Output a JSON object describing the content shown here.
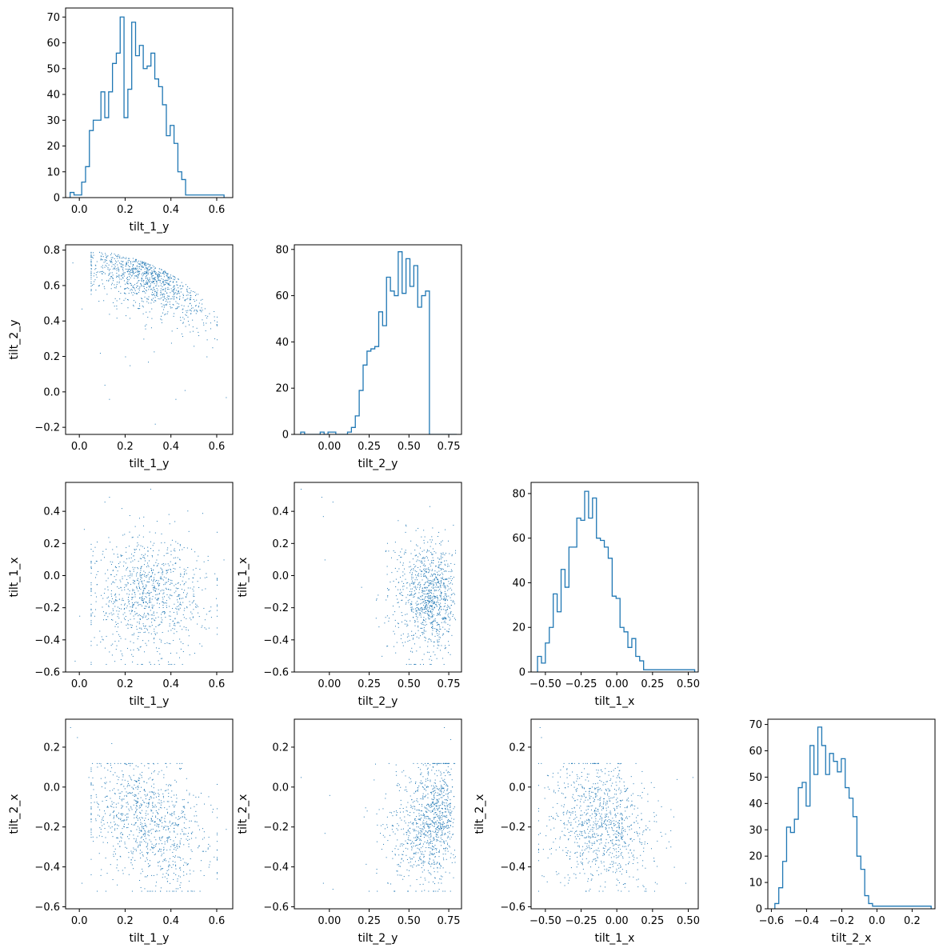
{
  "colors": {
    "series": "#1f77b4",
    "axis": "#000000",
    "background": "#ffffff"
  },
  "chart_data": {
    "type": "corner",
    "variables": [
      "tilt_1_y",
      "tilt_2_y",
      "tilt_1_x",
      "tilt_2_x"
    ],
    "grid": false,
    "panels": [
      {
        "id": "hist-tilt_1_y",
        "type": "histogram",
        "row": 0,
        "col": 0,
        "xlabel": "tilt_1_y",
        "ylabel": "",
        "xlim": [
          -0.06,
          0.67
        ],
        "ylim": [
          0,
          73.5
        ],
        "xticks": [
          0.0,
          0.2,
          0.4,
          0.6
        ],
        "xticklabels": [
          "0.0",
          "0.2",
          "0.4",
          "0.6"
        ],
        "yticks": [
          0,
          10,
          20,
          30,
          40,
          50,
          60,
          70
        ],
        "yticklabels": [
          "0",
          "10",
          "20",
          "30",
          "40",
          "50",
          "60",
          "70"
        ],
        "bin_start": -0.04,
        "bin_width": 0.0168,
        "counts": [
          2,
          1,
          1,
          6,
          12,
          26,
          30,
          30,
          41,
          31,
          41,
          52,
          56,
          70,
          31,
          42,
          68,
          55,
          59,
          50,
          51,
          56,
          46,
          43,
          36,
          24,
          28,
          21,
          10,
          7,
          1,
          1,
          1,
          1,
          1,
          1,
          1,
          1,
          1,
          1
        ]
      },
      {
        "id": "hist-tilt_2_y",
        "type": "histogram",
        "row": 1,
        "col": 1,
        "xlabel": "tilt_2_y",
        "ylabel": "",
        "xlim": [
          -0.22,
          0.83
        ],
        "ylim": [
          0,
          82
        ],
        "xticks": [
          0.0,
          0.25,
          0.5,
          0.75
        ],
        "xticklabels": [
          "0.00",
          "0.25",
          "0.50",
          "0.75"
        ],
        "yticks": [
          0,
          20,
          40,
          60,
          80
        ],
        "yticklabels": [
          "0",
          "20",
          "40",
          "60",
          "80"
        ],
        "bin_start": -0.18,
        "bin_width": 0.0245,
        "counts": [
          1,
          0,
          0,
          0,
          0,
          1,
          0,
          1,
          1,
          0,
          0,
          0,
          1,
          3,
          8,
          19,
          30,
          36,
          37,
          38,
          53,
          47,
          68,
          62,
          60,
          79,
          61,
          76,
          64,
          73,
          55,
          60,
          62,
          0,
          0,
          0,
          0,
          0,
          0,
          0
        ]
      },
      {
        "id": "hist-tilt_1_x",
        "type": "histogram",
        "row": 2,
        "col": 2,
        "xlabel": "tilt_1_x",
        "ylabel": "",
        "xlim": [
          -0.6,
          0.57
        ],
        "ylim": [
          0,
          85
        ],
        "xticks": [
          -0.5,
          -0.25,
          0.0,
          0.25,
          0.5
        ],
        "xticklabels": [
          "−0.50",
          "−0.25",
          "0.00",
          "0.25",
          "0.50"
        ],
        "yticks": [
          0,
          20,
          40,
          60,
          80
        ],
        "yticklabels": [
          "0",
          "20",
          "40",
          "60",
          "80"
        ],
        "bin_start": -0.555,
        "bin_width": 0.0275,
        "counts": [
          7,
          4,
          13,
          20,
          35,
          27,
          46,
          38,
          56,
          56,
          69,
          68,
          81,
          69,
          78,
          60,
          59,
          56,
          51,
          34,
          33,
          20,
          18,
          11,
          15,
          7,
          5,
          1,
          1,
          1,
          1,
          1,
          1,
          1,
          1,
          1,
          1,
          1,
          1,
          1
        ]
      },
      {
        "id": "hist-tilt_2_x",
        "type": "histogram",
        "row": 3,
        "col": 3,
        "xlabel": "tilt_2_x",
        "ylabel": "",
        "xlim": [
          -0.62,
          0.33
        ],
        "ylim": [
          0,
          72
        ],
        "xticks": [
          -0.6,
          -0.4,
          -0.2,
          0.0,
          0.2
        ],
        "xticklabels": [
          "−0.6",
          "−0.4",
          "−0.2",
          "0.0",
          "0.2"
        ],
        "yticks": [
          0,
          10,
          20,
          30,
          40,
          50,
          60,
          70
        ],
        "yticklabels": [
          "0",
          "10",
          "20",
          "30",
          "40",
          "50",
          "60",
          "70"
        ],
        "bin_start": -0.58,
        "bin_width": 0.0222,
        "counts": [
          2,
          8,
          18,
          31,
          29,
          34,
          46,
          48,
          39,
          62,
          51,
          69,
          62,
          51,
          59,
          56,
          52,
          57,
          46,
          42,
          35,
          20,
          15,
          5,
          2,
          1,
          1,
          1,
          1,
          1,
          1,
          1,
          1,
          1,
          1,
          1,
          1,
          1,
          1,
          1
        ]
      },
      {
        "id": "scatter-tilt_1_y-tilt_2_y",
        "type": "scatter",
        "row": 1,
        "col": 0,
        "xlabel": "tilt_1_y",
        "ylabel": "tilt_2_y",
        "xvar": "tilt_1_y",
        "yvar": "tilt_2_y",
        "xlim": [
          -0.06,
          0.67
        ],
        "ylim": [
          -0.24,
          0.83
        ],
        "xticks": [
          0.0,
          0.2,
          0.4,
          0.6
        ],
        "xticklabels": [
          "0.0",
          "0.2",
          "0.4",
          "0.6"
        ],
        "yticks": [
          -0.2,
          0.0,
          0.2,
          0.4,
          0.6,
          0.8
        ],
        "yticklabels": [
          "−0.2",
          "0.0",
          "0.2",
          "0.4",
          "0.6",
          "0.8"
        ],
        "n_points": 1000,
        "points": [
          [
            0.05,
            0.74
          ],
          [
            -0.03,
            0.73
          ],
          [
            0.01,
            0.47
          ],
          [
            0.11,
            0.04
          ],
          [
            0.13,
            -0.04
          ],
          [
            0.33,
            -0.18
          ],
          [
            0.64,
            -0.03
          ],
          [
            0.46,
            0.01
          ],
          [
            0.42,
            -0.04
          ],
          [
            0.09,
            0.22
          ],
          [
            0.13,
            0.44
          ],
          [
            0.2,
            0.2
          ],
          [
            0.22,
            0.15
          ],
          [
            0.28,
            0.3
          ],
          [
            0.3,
            0.17
          ]
        ]
      },
      {
        "id": "scatter-tilt_1_y-tilt_1_x",
        "type": "scatter",
        "row": 2,
        "col": 0,
        "xlabel": "tilt_1_y",
        "ylabel": "tilt_1_x",
        "xvar": "tilt_1_y",
        "yvar": "tilt_1_x",
        "xlim": [
          -0.06,
          0.67
        ],
        "ylim": [
          -0.6,
          0.58
        ],
        "xticks": [
          0.0,
          0.2,
          0.4,
          0.6
        ],
        "xticklabels": [
          "0.0",
          "0.2",
          "0.4",
          "0.6"
        ],
        "yticks": [
          -0.6,
          -0.4,
          -0.2,
          0.0,
          0.2,
          0.4
        ],
        "yticklabels": [
          "−0.6",
          "−0.4",
          "−0.2",
          "0.0",
          "0.2",
          "0.4"
        ],
        "n_points": 1000,
        "points": [
          [
            0.31,
            0.54
          ],
          [
            0.02,
            0.29
          ],
          [
            -0.02,
            -0.53
          ],
          [
            0.0,
            -0.25
          ],
          [
            0.63,
            0.1
          ],
          [
            0.11,
            0.46
          ],
          [
            0.13,
            0.49
          ]
        ]
      },
      {
        "id": "scatter-tilt_2_y-tilt_1_x",
        "type": "scatter",
        "row": 2,
        "col": 1,
        "xlabel": "tilt_2_y",
        "ylabel": "tilt_1_x",
        "xvar": "tilt_2_y",
        "yvar": "tilt_1_x",
        "xlim": [
          -0.22,
          0.83
        ],
        "ylim": [
          -0.6,
          0.58
        ],
        "xticks": [
          0.0,
          0.25,
          0.5,
          0.75
        ],
        "xticklabels": [
          "0.00",
          "0.25",
          "0.50",
          "0.75"
        ],
        "yticks": [
          -0.6,
          -0.4,
          -0.2,
          0.0,
          0.2,
          0.4
        ],
        "yticklabels": [
          "−0.6",
          "−0.4",
          "−0.2",
          "0.0",
          "0.2",
          "0.4"
        ],
        "n_points": 1000,
        "points": [
          [
            -0.18,
            0.54
          ],
          [
            -0.05,
            0.49
          ],
          [
            0.02,
            0.46
          ],
          [
            -0.04,
            0.37
          ],
          [
            -0.03,
            0.1
          ]
        ]
      },
      {
        "id": "scatter-tilt_1_y-tilt_2_x",
        "type": "scatter",
        "row": 3,
        "col": 0,
        "xlabel": "tilt_1_y",
        "ylabel": "tilt_2_x",
        "xvar": "tilt_1_y",
        "yvar": "tilt_2_x",
        "xlim": [
          -0.06,
          0.67
        ],
        "ylim": [
          -0.61,
          0.34
        ],
        "xticks": [
          0.0,
          0.2,
          0.4,
          0.6
        ],
        "xticklabels": [
          "0.0",
          "0.2",
          "0.4",
          "0.6"
        ],
        "yticks": [
          -0.6,
          -0.4,
          -0.2,
          0.0,
          0.2
        ],
        "yticklabels": [
          "−0.6",
          "−0.4",
          "−0.2",
          "0.0",
          "0.2"
        ],
        "n_points": 1000,
        "points": [
          [
            -0.04,
            0.3
          ],
          [
            -0.01,
            0.25
          ],
          [
            0.01,
            -0.48
          ],
          [
            0.14,
            0.22
          ],
          [
            0.04,
            0.05
          ],
          [
            0.64,
            -0.21
          ],
          [
            0.12,
            -0.43
          ]
        ]
      },
      {
        "id": "scatter-tilt_2_y-tilt_2_x",
        "type": "scatter",
        "row": 3,
        "col": 1,
        "xlabel": "tilt_2_y",
        "ylabel": "tilt_2_x",
        "xvar": "tilt_2_y",
        "yvar": "tilt_2_x",
        "xlim": [
          -0.22,
          0.83
        ],
        "ylim": [
          -0.61,
          0.34
        ],
        "xticks": [
          0.0,
          0.25,
          0.5,
          0.75
        ],
        "xticklabels": [
          "0.00",
          "0.25",
          "0.50",
          "0.75"
        ],
        "yticks": [
          -0.6,
          -0.4,
          -0.2,
          0.0,
          0.2
        ],
        "yticklabels": [
          "−0.6",
          "−0.4",
          "−0.2",
          "0.0",
          "0.2"
        ],
        "n_points": 1000,
        "points": [
          [
            -0.18,
            0.05
          ],
          [
            -0.04,
            -0.48
          ],
          [
            -0.03,
            -0.23
          ],
          [
            0.0,
            -0.04
          ],
          [
            0.02,
            -0.51
          ],
          [
            0.72,
            0.3
          ],
          [
            0.76,
            0.24
          ]
        ]
      },
      {
        "id": "scatter-tilt_1_x-tilt_2_x",
        "type": "scatter",
        "row": 3,
        "col": 2,
        "xlabel": "tilt_1_x",
        "ylabel": "tilt_2_x",
        "xvar": "tilt_1_x",
        "yvar": "tilt_2_x",
        "xlim": [
          -0.6,
          0.57
        ],
        "ylim": [
          -0.61,
          0.34
        ],
        "xticks": [
          -0.5,
          -0.25,
          0.0,
          0.25,
          0.5
        ],
        "xticklabels": [
          "−0.50",
          "−0.25",
          "0.00",
          "0.25",
          "0.50"
        ],
        "yticks": [
          -0.6,
          -0.4,
          -0.2,
          0.0,
          0.2
        ],
        "yticklabels": [
          "−0.6",
          "−0.4",
          "−0.2",
          "0.0",
          "0.2"
        ],
        "n_points": 1000,
        "points": [
          [
            -0.54,
            0.3
          ],
          [
            -0.53,
            0.25
          ],
          [
            0.53,
            0.05
          ],
          [
            0.48,
            -0.48
          ],
          [
            0.4,
            -0.4
          ],
          [
            -0.45,
            -0.1
          ]
        ]
      }
    ]
  }
}
